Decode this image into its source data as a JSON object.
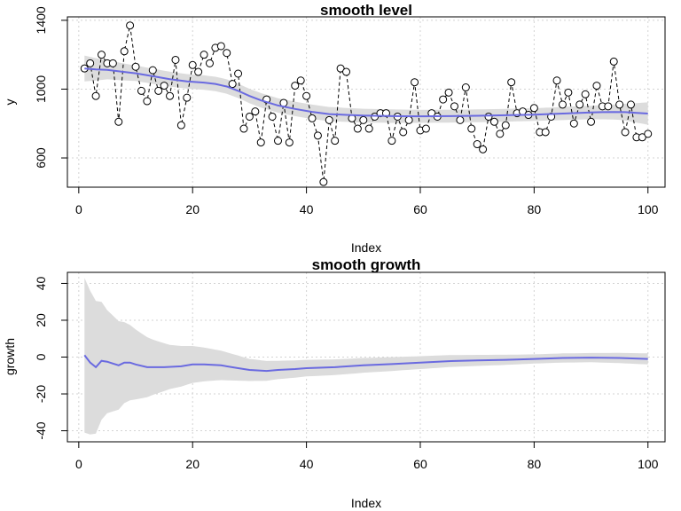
{
  "chart_data": [
    {
      "type": "line",
      "title": "smooth level",
      "xlabel": "Index",
      "ylabel": "y",
      "xlim": [
        -2,
        103
      ],
      "ylim": [
        430,
        1420
      ],
      "xticks": [
        0,
        20,
        40,
        60,
        80,
        100
      ],
      "yticks": [
        600,
        1000,
        1400
      ],
      "grid": true,
      "observed": [
        1120,
        1150,
        960,
        1200,
        1150,
        1150,
        810,
        1220,
        1370,
        1130,
        990,
        930,
        1110,
        990,
        1020,
        960,
        1170,
        790,
        950,
        1140,
        1100,
        1200,
        1150,
        1240,
        1250,
        1210,
        1030,
        1090,
        770,
        840,
        870,
        690,
        940,
        840,
        700,
        920,
        690,
        1020,
        1050,
        960,
        830,
        730,
        460,
        820,
        700,
        1120,
        1100,
        830,
        770,
        820,
        770,
        840,
        860,
        860,
        700,
        840,
        750,
        820,
        1040,
        760,
        770,
        860,
        840,
        940,
        980,
        900,
        820,
        1010,
        770,
        680,
        650,
        840,
        810,
        740,
        790,
        1040,
        860,
        870,
        850,
        890,
        750,
        750,
        840,
        1050,
        910,
        980,
        800,
        910,
        970,
        810,
        1020,
        900,
        900,
        1160,
        910,
        750,
        910,
        720,
        720,
        740
      ],
      "smooth": [
        [
          1,
          1120
        ],
        [
          3,
          1115
        ],
        [
          5,
          1112
        ],
        [
          8,
          1100
        ],
        [
          10,
          1092
        ],
        [
          13,
          1075
        ],
        [
          16,
          1058
        ],
        [
          19,
          1045
        ],
        [
          22,
          1038
        ],
        [
          24,
          1030
        ],
        [
          26,
          1015
        ],
        [
          28,
          990
        ],
        [
          30,
          960
        ],
        [
          32,
          935
        ],
        [
          35,
          905
        ],
        [
          38,
          885
        ],
        [
          41,
          868
        ],
        [
          44,
          855
        ],
        [
          47,
          850
        ],
        [
          50,
          846
        ],
        [
          55,
          843
        ],
        [
          60,
          842
        ],
        [
          65,
          843
        ],
        [
          70,
          845
        ],
        [
          75,
          848
        ],
        [
          80,
          852
        ],
        [
          85,
          858
        ],
        [
          88,
          862
        ],
        [
          90,
          864
        ],
        [
          92,
          866
        ],
        [
          94,
          867
        ],
        [
          96,
          866
        ],
        [
          98,
          862
        ],
        [
          100,
          858
        ]
      ],
      "band_half_width": [
        [
          1,
          75
        ],
        [
          5,
          55
        ],
        [
          10,
          45
        ],
        [
          20,
          42
        ],
        [
          30,
          42
        ],
        [
          40,
          42
        ],
        [
          50,
          40
        ],
        [
          60,
          38
        ],
        [
          70,
          37
        ],
        [
          80,
          37
        ],
        [
          90,
          39
        ],
        [
          95,
          45
        ],
        [
          100,
          65
        ]
      ]
    },
    {
      "type": "line",
      "title": "smooth growth",
      "xlabel": "Index",
      "ylabel": "growth",
      "xlim": [
        -2,
        103
      ],
      "ylim": [
        -46,
        46
      ],
      "xticks": [
        0,
        20,
        40,
        60,
        80,
        100
      ],
      "yticks": [
        -40,
        -20,
        0,
        20,
        40
      ],
      "grid": true,
      "smooth": [
        [
          1,
          1
        ],
        [
          2,
          -3
        ],
        [
          3,
          -5.5
        ],
        [
          4,
          -2
        ],
        [
          5,
          -2.5
        ],
        [
          6,
          -3.5
        ],
        [
          7,
          -4.5
        ],
        [
          8,
          -3
        ],
        [
          9,
          -3
        ],
        [
          10,
          -4
        ],
        [
          12,
          -5.5
        ],
        [
          15,
          -5.5
        ],
        [
          18,
          -5
        ],
        [
          20,
          -4
        ],
        [
          22,
          -4
        ],
        [
          25,
          -4.5
        ],
        [
          28,
          -6
        ],
        [
          30,
          -7
        ],
        [
          33,
          -7.5
        ],
        [
          35,
          -7
        ],
        [
          38,
          -6.5
        ],
        [
          40,
          -6
        ],
        [
          45,
          -5.5
        ],
        [
          50,
          -4.5
        ],
        [
          55,
          -3.8
        ],
        [
          60,
          -3
        ],
        [
          65,
          -2.2
        ],
        [
          70,
          -1.8
        ],
        [
          75,
          -1.5
        ],
        [
          80,
          -1
        ],
        [
          85,
          -0.5
        ],
        [
          90,
          -0.3
        ],
        [
          95,
          -0.5
        ],
        [
          100,
          -1
        ]
      ],
      "band_half_width": [
        [
          1,
          42
        ],
        [
          3,
          36
        ],
        [
          5,
          28
        ],
        [
          8,
          22
        ],
        [
          10,
          19
        ],
        [
          13,
          15
        ],
        [
          16,
          12
        ],
        [
          20,
          10
        ],
        [
          25,
          8
        ],
        [
          30,
          6
        ],
        [
          35,
          5
        ],
        [
          40,
          4.5
        ],
        [
          50,
          4
        ],
        [
          60,
          3.5
        ],
        [
          70,
          3
        ],
        [
          80,
          2.5
        ],
        [
          90,
          2.5
        ],
        [
          100,
          3
        ]
      ]
    }
  ]
}
